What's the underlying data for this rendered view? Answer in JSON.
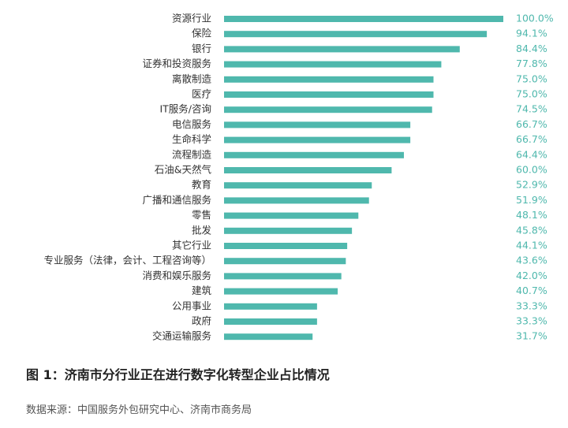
{
  "chart_data": {
    "type": "bar",
    "orientation": "horizontal",
    "categories": [
      "资源行业",
      "保险",
      "银行",
      "证券和投资服务",
      "离散制造",
      "医疗",
      "IT服务/咨询",
      "电信服务",
      "生命科学",
      "流程制造",
      "石油&天然气",
      "教育",
      "广播和通信服务",
      "零售",
      "批发",
      "其它行业",
      "专业服务（法律，会计、工程咨询等）",
      "消费和娱乐服务",
      "建筑",
      "公用事业",
      "政府",
      "交通运输服务"
    ],
    "values": [
      100.0,
      94.1,
      84.4,
      77.8,
      75.0,
      75.0,
      74.5,
      66.7,
      66.7,
      64.4,
      60.0,
      52.9,
      51.9,
      48.1,
      45.8,
      44.1,
      43.6,
      42.0,
      40.7,
      33.3,
      33.3,
      31.7
    ],
    "value_labels": [
      "100.0%",
      "94.1%",
      "84.4%",
      "77.8%",
      "75.0%",
      "75.0%",
      "74.5%",
      "66.7%",
      "66.7%",
      "64.4%",
      "60.0%",
      "52.9%",
      "51.9%",
      "48.1%",
      "45.8%",
      "44.1%",
      "43.6%",
      "42.0%",
      "40.7%",
      "33.3%",
      "33.3%",
      "31.7%"
    ],
    "xlim": [
      0,
      100
    ],
    "unit": "%",
    "grid": false,
    "legend": "none",
    "bar_color": "#4fb8ad",
    "value_label_color": "#4fb8ad"
  },
  "figure": {
    "title": "图 1：济南市分行业正在进行数字化转型企业占比情况",
    "source": "数据来源：中国服务外包研究中心、济南市商务局"
  }
}
